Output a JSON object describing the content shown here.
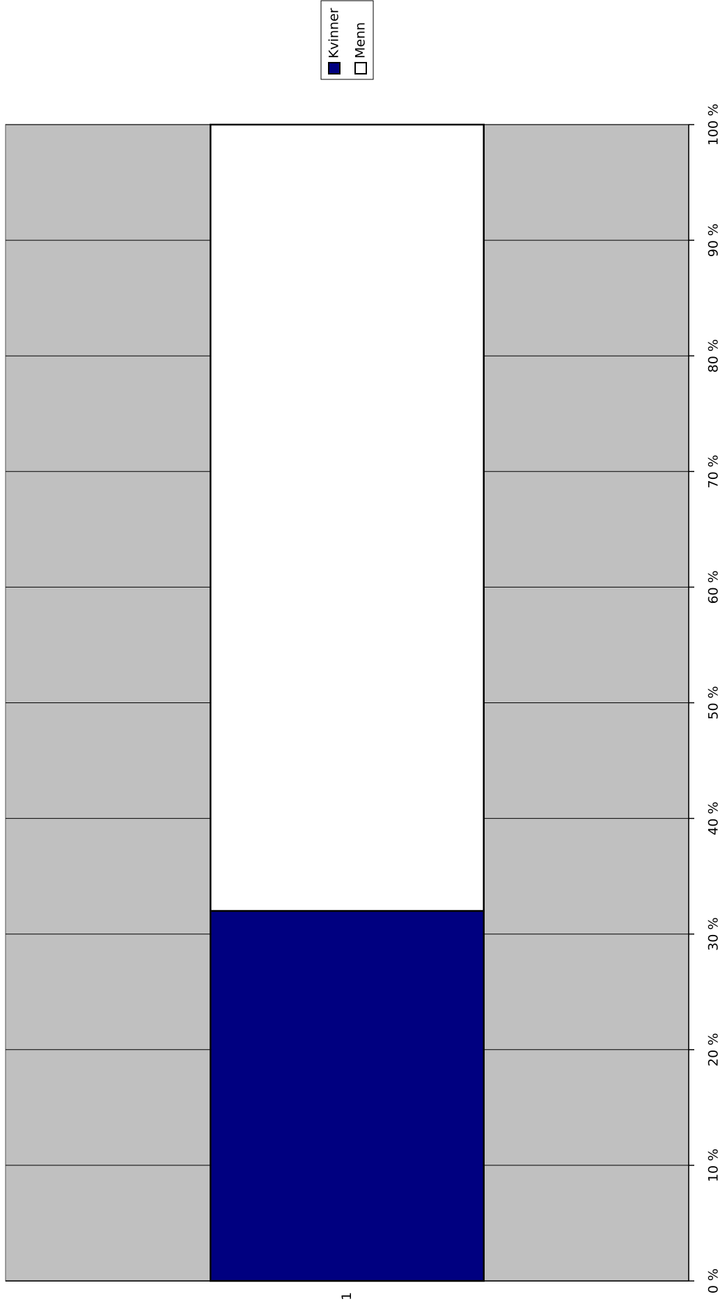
{
  "chart_data": {
    "type": "stacked_bar",
    "categories": [
      "1"
    ],
    "series": [
      {
        "name": "Kvinner",
        "color": "#000080",
        "values": [
          32
        ]
      },
      {
        "name": "Menn",
        "color": "#ffffff",
        "values": [
          68
        ]
      }
    ],
    "ylim": [
      0,
      100
    ],
    "yticks": [
      {
        "value": 0,
        "label": "0 %"
      },
      {
        "value": 10,
        "label": "10 %"
      },
      {
        "value": 20,
        "label": "20 %"
      },
      {
        "value": 30,
        "label": "30 %"
      },
      {
        "value": 40,
        "label": "40 %"
      },
      {
        "value": 50,
        "label": "50 %"
      },
      {
        "value": 60,
        "label": "60 %"
      },
      {
        "value": 70,
        "label": "70 %"
      },
      {
        "value": 80,
        "label": "80 %"
      },
      {
        "value": 90,
        "label": "90 %"
      },
      {
        "value": 100,
        "label": "100 %"
      }
    ],
    "grid": true,
    "legend": "top"
  }
}
